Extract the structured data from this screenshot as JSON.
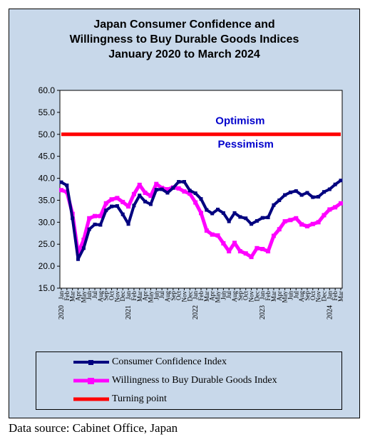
{
  "chart_data": {
    "type": "line",
    "title_lines": [
      "Japan Consumer Confidence and",
      "Willingness to Buy Durable Goods Indices",
      "January 2020 to March 2024"
    ],
    "y_ticks": [
      "60.0",
      "55.0",
      "50.0",
      "45.0",
      "40.0",
      "35.0",
      "30.0",
      "25.0",
      "20.0",
      "15.0"
    ],
    "ylim": [
      15,
      60
    ],
    "x_month_labels": [
      "Jan",
      "Feb",
      "Mar",
      "Apr",
      "May",
      "Jun",
      "Jul",
      "Aug",
      "Sep",
      "Oct",
      "Nov",
      "Dec",
      "Jan",
      "Feb",
      "Mar",
      "Apr",
      "May",
      "Jun",
      "Jul",
      "Aug",
      "Sep",
      "Oct",
      "Nov",
      "Dec",
      "Jan",
      "Feb",
      "Mar",
      "Apr",
      "May",
      "Jun",
      "Jul",
      "Aug",
      "Sep",
      "Oct",
      "Nov",
      "Dec",
      "Jan",
      "Feb",
      "Mar",
      "Apr",
      "May",
      "Jun",
      "Jul",
      "Aug",
      "Sep",
      "Oct",
      "Nov",
      "Dec",
      "Jan",
      "Feb",
      "Mar"
    ],
    "x_year_labels": [
      {
        "index": 0,
        "label": "2020"
      },
      {
        "index": 12,
        "label": "2021"
      },
      {
        "index": 24,
        "label": "2022"
      },
      {
        "index": 36,
        "label": "2023"
      },
      {
        "index": 48,
        "label": "2024"
      }
    ],
    "series": [
      {
        "name": "Consumer Confidence Index",
        "color": "#00007f",
        "values": [
          39.1,
          38.4,
          30.9,
          21.6,
          24.1,
          28.4,
          29.5,
          29.4,
          32.7,
          33.6,
          33.7,
          31.8,
          29.6,
          33.8,
          36.1,
          34.7,
          34.1,
          37.4,
          37.5,
          36.7,
          37.8,
          39.2,
          39.2,
          37.2,
          36.6,
          35.3,
          32.8,
          32.0,
          32.9,
          32.1,
          30.2,
          32.1,
          31.2,
          30.9,
          29.6,
          30.3,
          31.0,
          31.1,
          33.9,
          35.0,
          36.2,
          36.8,
          37.1,
          36.2,
          36.7,
          35.7,
          35.8,
          36.9,
          37.5,
          38.6,
          39.5
        ]
      },
      {
        "name": "Willingness to Buy Durable Goods Index",
        "color": "#ff00ff",
        "values": [
          37.3,
          36.9,
          31.9,
          23.0,
          26.0,
          30.9,
          31.4,
          31.4,
          34.3,
          35.2,
          35.5,
          34.6,
          33.6,
          36.4,
          38.5,
          36.7,
          36.0,
          38.7,
          37.8,
          37.5,
          37.9,
          37.7,
          37.0,
          36.5,
          34.5,
          32.1,
          28.1,
          27.2,
          27.0,
          25.2,
          23.4,
          25.3,
          23.4,
          22.9,
          22.1,
          24.1,
          23.9,
          23.4,
          26.9,
          28.4,
          30.2,
          30.5,
          30.9,
          29.5,
          29.1,
          29.6,
          30.0,
          31.6,
          32.9,
          33.4,
          34.3
        ]
      },
      {
        "name": "Turning point",
        "color": "#ff0000",
        "values": [
          50,
          50,
          50,
          50,
          50,
          50,
          50,
          50,
          50,
          50,
          50,
          50,
          50,
          50,
          50,
          50,
          50,
          50,
          50,
          50,
          50,
          50,
          50,
          50,
          50,
          50,
          50,
          50,
          50,
          50,
          50,
          50,
          50,
          50,
          50,
          50,
          50,
          50,
          50,
          50,
          50,
          50,
          50,
          50,
          50,
          50,
          50,
          50,
          50,
          50,
          50
        ]
      }
    ],
    "annotations": [
      {
        "text": "Optimism",
        "x_index": 32,
        "y": 52.3,
        "color": "#0000cc"
      },
      {
        "text": "Pessimism",
        "x_index": 33,
        "y": 47.0,
        "color": "#0000cc"
      }
    ],
    "grid": false,
    "legend_placement": "bottom"
  },
  "source_note": "Data source: Cabinet Office, Japan",
  "colors": {
    "plot_background": "#c8d8ea"
  }
}
